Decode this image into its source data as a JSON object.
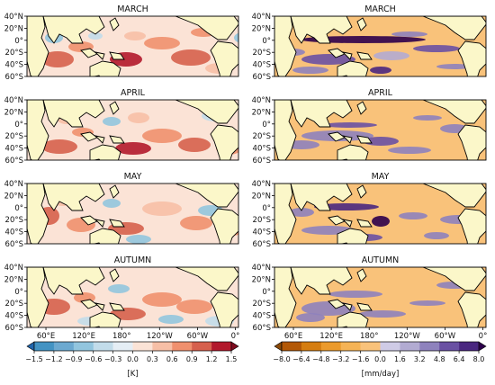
{
  "chart_data": {
    "type": "heatmap",
    "panels": [
      {
        "column": "left",
        "title": "MARCH"
      },
      {
        "column": "left",
        "title": "APRIL"
      },
      {
        "column": "left",
        "title": "MAY"
      },
      {
        "column": "left",
        "title": "AUTUMN"
      },
      {
        "column": "right",
        "title": "MARCH"
      },
      {
        "column": "right",
        "title": "APRIL"
      },
      {
        "column": "right",
        "title": "MAY"
      },
      {
        "column": "right",
        "title": "AUTUMN"
      }
    ],
    "lat_ticks": [
      "40°N",
      "20°N",
      "0°",
      "20°S",
      "40°S",
      "60°S"
    ],
    "lon_ticks": [
      "60°E",
      "120°E",
      "180°",
      "120°W",
      "60°W",
      "0°"
    ],
    "lat_range": [
      -60,
      40
    ],
    "lon_range": [
      30,
      365
    ],
    "colorbars": [
      {
        "label": "[K]",
        "ticks": [
          "−1.5",
          "−1.2",
          "−0.9",
          "−0.6",
          "−0.3",
          "0.0",
          "0.3",
          "0.6",
          "0.9",
          "1.2",
          "1.5"
        ],
        "colors": [
          "#2166ac",
          "#4393c3",
          "#6ca9d0",
          "#92c5de",
          "#c2dcea",
          "#e5eef5",
          "#fbe3d6",
          "#f7bfa6",
          "#f0906e",
          "#d6604d",
          "#b2182b",
          "#7f0b1e"
        ]
      },
      {
        "label": "[mm/day]",
        "ticks": [
          "−8.0",
          "−6.4",
          "−4.8",
          "−3.2",
          "−1.6",
          "0.0",
          "1.6",
          "3.2",
          "4.8",
          "6.4",
          "8.0"
        ],
        "colors": [
          "#8a4a08",
          "#b35806",
          "#d57d10",
          "#eb9a2c",
          "#f5b355",
          "#f9c27a",
          "#cfcbe6",
          "#b2abd2",
          "#8e82bd",
          "#6a51a3",
          "#4a2780",
          "#2d004b"
        ]
      }
    ],
    "land_color": "#fbf7c9"
  }
}
